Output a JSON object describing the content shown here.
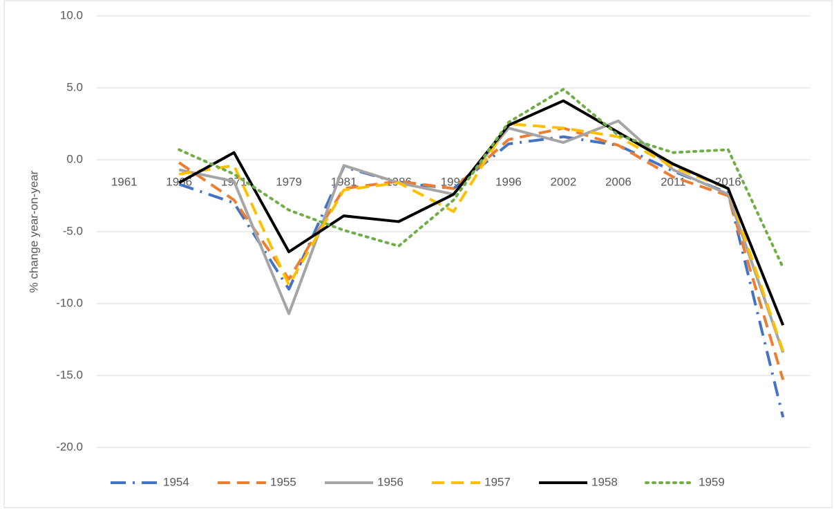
{
  "chart_data": {
    "type": "line",
    "y_label": "% change year-on-year",
    "categories": [
      "1961",
      "1966",
      "1971",
      "1979",
      "1981",
      "1986",
      "1991",
      "1996",
      "2002",
      "2006",
      "2011",
      "2016",
      null
    ],
    "series": [
      {
        "name": "1954",
        "color": "#4472c4",
        "line_style": "dash-dot",
        "values": [
          null,
          -1.7,
          -3.0,
          -9.0,
          -0.5,
          -1.6,
          -2.0,
          1.1,
          1.6,
          1.0,
          -0.8,
          -2.3,
          -17.9
        ]
      },
      {
        "name": "1955",
        "color": "#ed7d31",
        "line_style": "dash",
        "values": [
          null,
          -0.2,
          -2.8,
          -8.3,
          -2.0,
          -1.5,
          -2.0,
          1.4,
          2.2,
          1.0,
          -1.2,
          -2.5,
          -15.3
        ]
      },
      {
        "name": "1956",
        "color": "#a5a5a5",
        "line_style": "solid",
        "values": [
          null,
          -0.7,
          -1.5,
          -10.7,
          -0.4,
          -1.6,
          -2.4,
          2.2,
          1.2,
          2.7,
          -0.7,
          -2.4,
          -13.4
        ]
      },
      {
        "name": "1957",
        "color": "#ffc000",
        "line_style": "dash",
        "values": [
          null,
          -1.0,
          -0.4,
          -8.7,
          -2.1,
          -1.6,
          -3.6,
          2.5,
          2.2,
          1.6,
          -0.5,
          -2.0,
          -13.3
        ]
      },
      {
        "name": "1958",
        "color": "#000000",
        "line_style": "solid",
        "values": [
          null,
          -1.6,
          0.5,
          -6.4,
          -3.9,
          -4.3,
          -2.4,
          2.4,
          4.1,
          1.9,
          -0.3,
          -2.0,
          -11.5
        ]
      },
      {
        "name": "1959",
        "color": "#70ad47",
        "line_style": "dotted",
        "values": [
          null,
          0.7,
          -1.0,
          -3.5,
          -4.9,
          -6.0,
          -2.8,
          2.6,
          4.9,
          1.7,
          0.5,
          0.7,
          -7.5
        ]
      }
    ],
    "ylim": [
      -20,
      10
    ],
    "yticks": [
      {
        "value": -20,
        "label": "-20.0"
      },
      {
        "value": -15,
        "label": "-15.0"
      },
      {
        "value": -10,
        "label": "-10.0"
      },
      {
        "value": -5,
        "label": "-5.0"
      },
      {
        "value": 0,
        "label": "0.0"
      },
      {
        "value": 5,
        "label": "5.0"
      },
      {
        "value": 10,
        "label": "10.0"
      }
    ],
    "grid": true,
    "legend": "bottom"
  }
}
